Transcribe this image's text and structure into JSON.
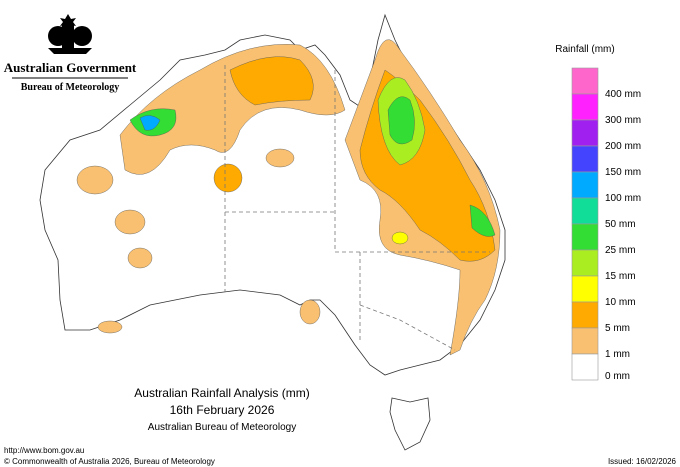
{
  "header": {
    "government": "Australian Government",
    "agency": "Bureau of Meteorology"
  },
  "map": {
    "title": "Australian Rainfall Analysis (mm)",
    "date": "16th February 2026",
    "subtitle": "Australian Bureau of Meteorology"
  },
  "legend": {
    "title": "Rainfall (mm)",
    "colors": [
      "#ff66cc",
      "#ff22ff",
      "#a020f0",
      "#4444ff",
      "#00aaff",
      "#11dd99",
      "#33dd33",
      "#aaee22",
      "#ffff00",
      "#ffaa00",
      "#f8c070",
      "#ffffff"
    ],
    "labels": [
      null,
      "400 mm",
      "300 mm",
      "200 mm",
      "150 mm",
      "100 mm",
      "50 mm",
      "25 mm",
      "15 mm",
      "10 mm",
      "5 mm",
      "1 mm",
      "0 mm"
    ]
  },
  "footer": {
    "url": "http://www.bom.gov.au",
    "copyright": "© Commonwealth of Australia 2026, Bureau of Meteorology",
    "issued": "Issued: 16/02/2026"
  }
}
